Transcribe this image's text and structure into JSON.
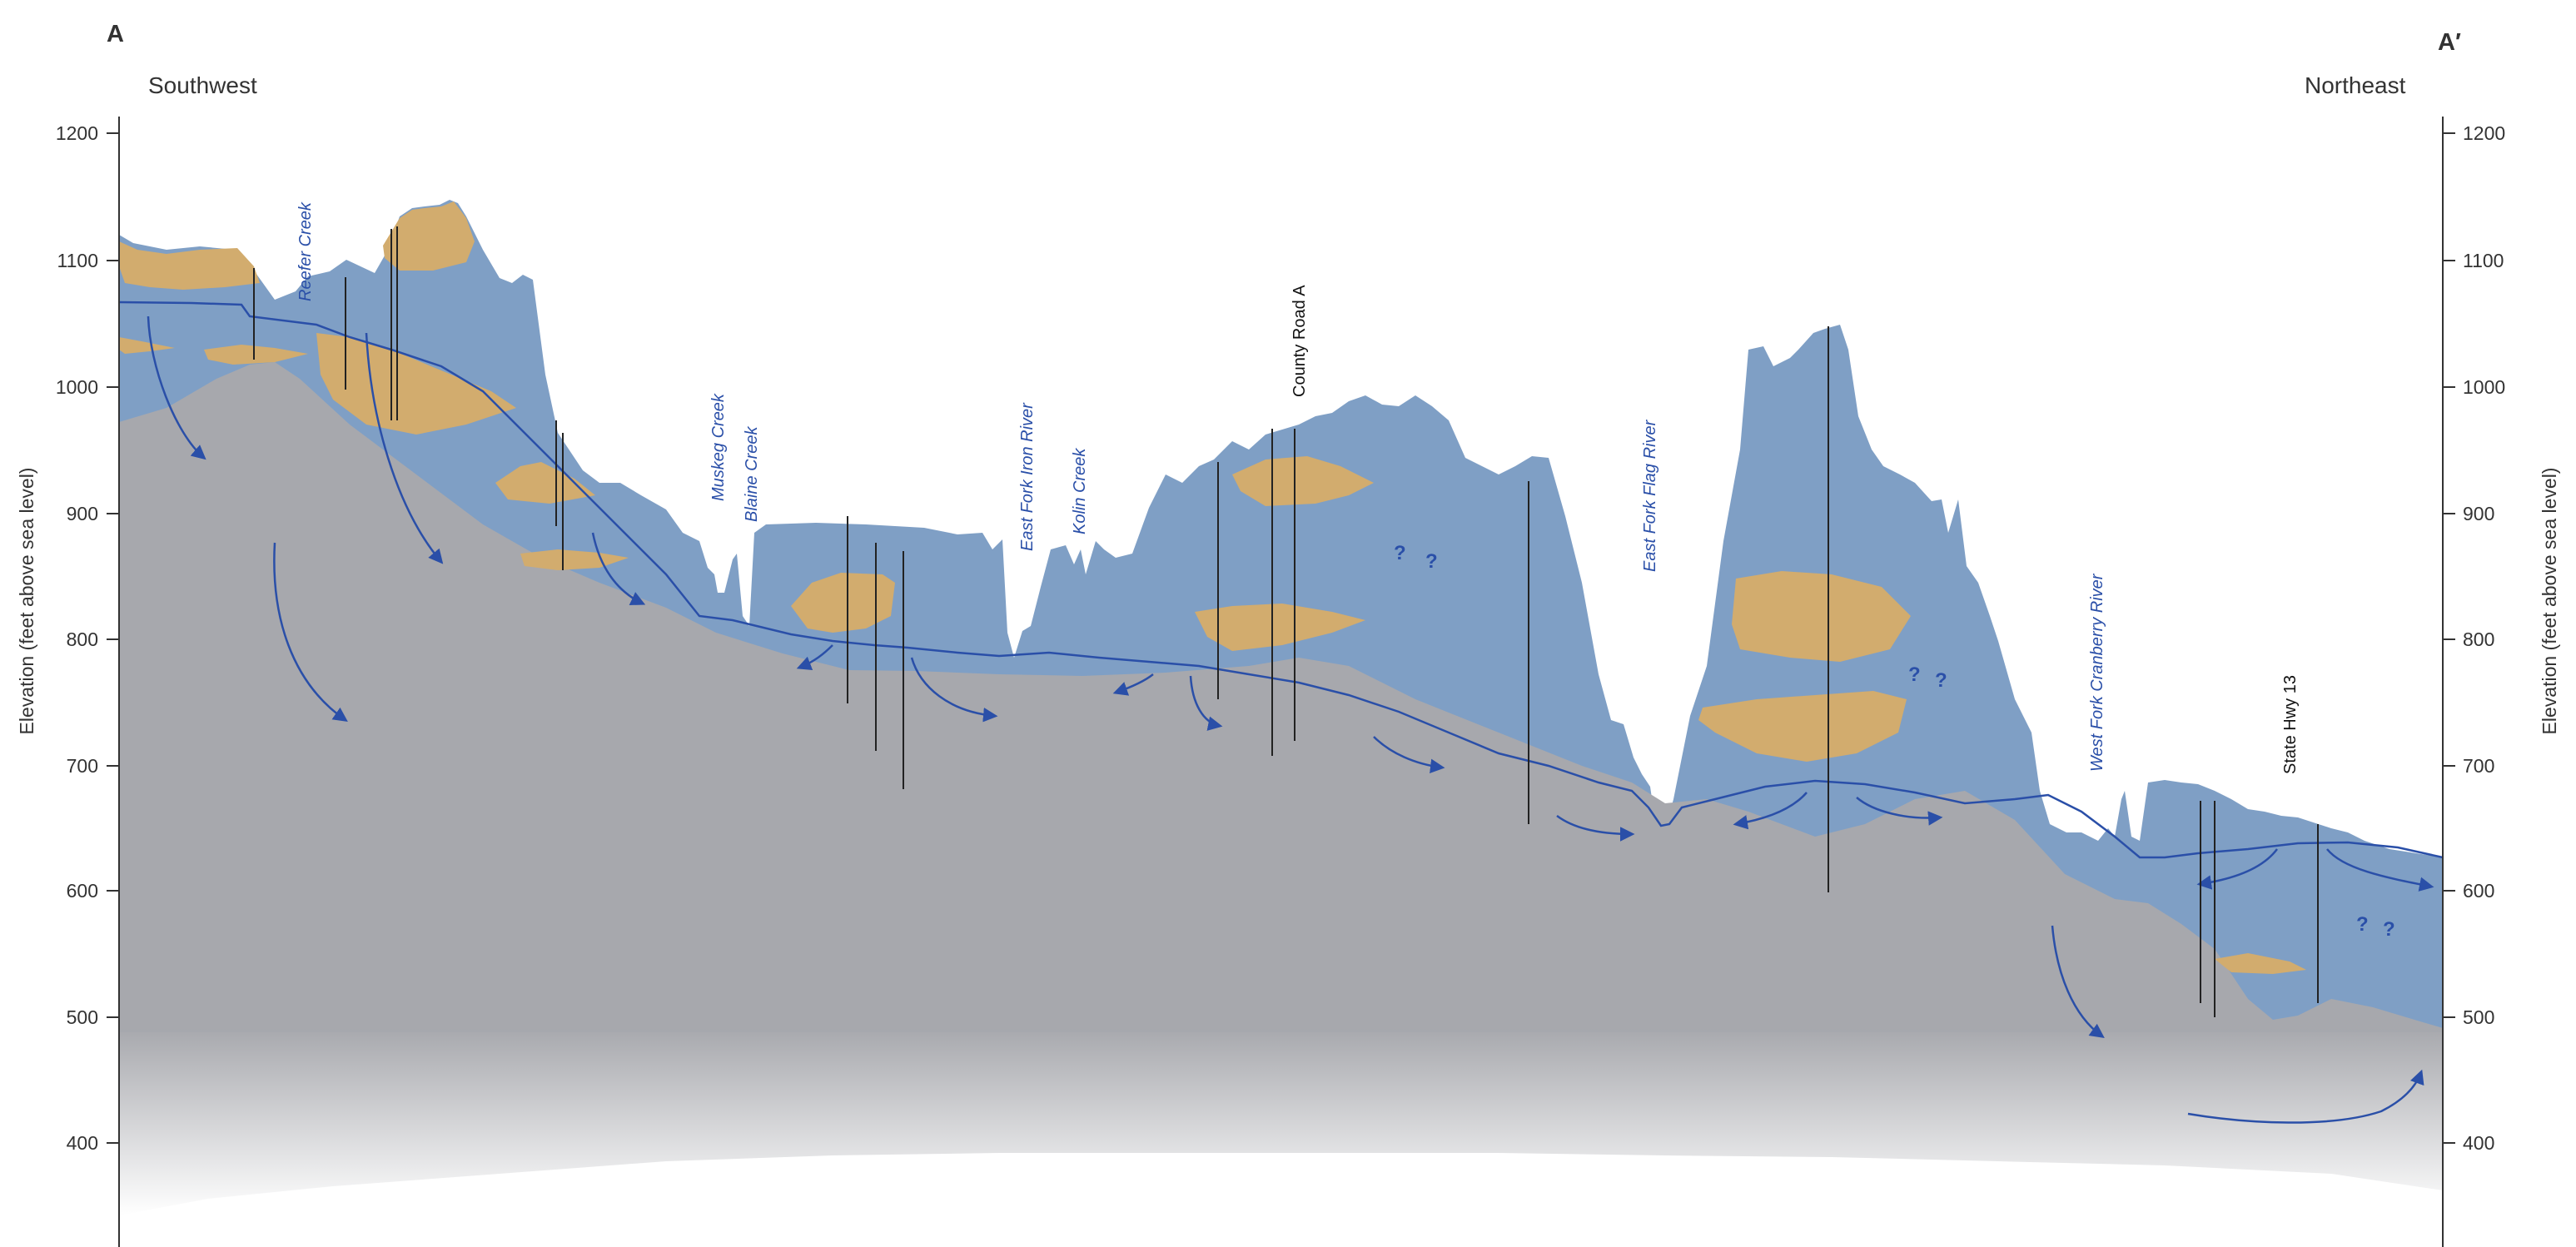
{
  "section_ends": {
    "start": "A",
    "end": "A′"
  },
  "directions": {
    "left": "Southwest",
    "right": "Northeast"
  },
  "axis": {
    "title_left": "Elevation (feet above sea level)",
    "title_right": "Elevation (feet above sea level)",
    "ticks": [
      "1200",
      "1100",
      "1000",
      "900",
      "800",
      "700",
      "600",
      "500",
      "400"
    ]
  },
  "rivers": [
    "Reefer Creek",
    "Muskeg Creek",
    "Blaine Creek",
    "East Fork Iron River",
    "Kolin Creek",
    "East Fork Flag River",
    "West Fork Cranberry River"
  ],
  "roads": [
    "County Road A",
    "State Hwy 13"
  ],
  "unknown_marker": "?",
  "colors": {
    "bedrock": "#a7a8ad",
    "sediment": "#7f9fc5",
    "sand_lens": "#d2ac6e",
    "water_table": "#2a4fa8",
    "flow_arrow": "#2a4fa8",
    "well": "#222222"
  }
}
